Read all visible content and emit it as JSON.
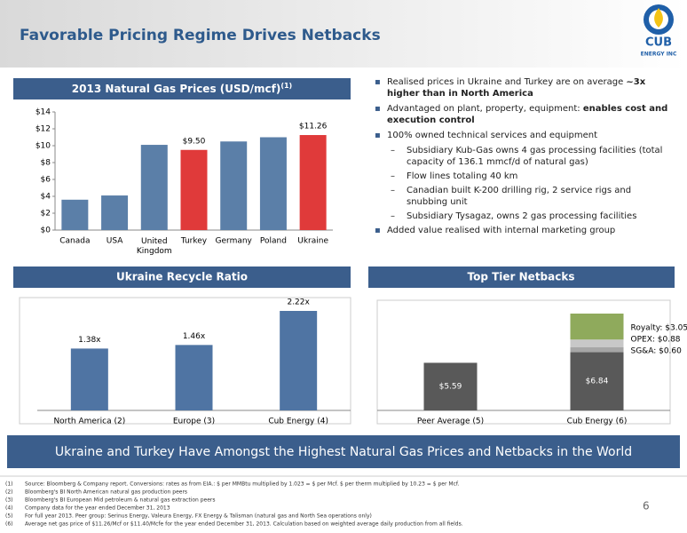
{
  "header": {
    "title": "Favorable Pricing Regime Drives Netbacks"
  },
  "logo": {
    "name": "CUB",
    "tagline": "ENERGY INC"
  },
  "chart_data": [
    {
      "type": "bar",
      "title": "2013 Natural Gas Prices (USD/mcf)",
      "title_note": "(1)",
      "categories": [
        "Canada",
        "USA",
        "United Kingdom",
        "Turkey",
        "Germany",
        "Poland",
        "Ukraine"
      ],
      "values": [
        3.6,
        4.1,
        10.1,
        9.5,
        10.5,
        11.0,
        11.26
      ],
      "value_labels": [
        null,
        null,
        null,
        "$9.50",
        null,
        null,
        "$11.26"
      ],
      "colors": [
        "#5b7fa8",
        "#5b7fa8",
        "#5b7fa8",
        "#e03a3a",
        "#5b7fa8",
        "#5b7fa8",
        "#e03a3a"
      ],
      "ylim": [
        0,
        14
      ],
      "yticks": [
        {
          "value": 0,
          "label": "$0"
        },
        {
          "value": 2,
          "label": "$2"
        },
        {
          "value": 4,
          "label": "$4"
        },
        {
          "value": 6,
          "label": "$6"
        },
        {
          "value": 8,
          "label": "$8"
        },
        {
          "value": 10,
          "label": "$10"
        },
        {
          "value": 12,
          "label": "$12"
        },
        {
          "value": 14,
          "label": "$14"
        }
      ]
    },
    {
      "type": "bar",
      "title": "Ukraine Recycle Ratio",
      "categories": [
        "North America (2)",
        "Europe (3)",
        "Cub Energy (4)"
      ],
      "values": [
        1.38,
        1.46,
        2.22
      ],
      "value_labels": [
        "1.38x",
        "1.46x",
        "2.22x"
      ],
      "color": "#4f74a3"
    },
    {
      "type": "stacked_bar",
      "title": "Top Tier Netbacks",
      "categories": [
        "Peer Average (5)",
        "Cub Energy (6)"
      ],
      "series": [
        {
          "color": "#595959",
          "values": [
            5.59,
            6.84
          ],
          "value_labels": [
            "$5.59",
            "$6.84"
          ]
        },
        {
          "name": "SG&A",
          "color": "#a6a6a6",
          "values": [
            null,
            0.6
          ],
          "value_labels": [
            null,
            "SG&A: $0.60"
          ]
        },
        {
          "name": "OPEX",
          "color": "#c8c8c8",
          "values": [
            null,
            0.88
          ],
          "value_labels": [
            null,
            "OPEX: $0.88"
          ]
        },
        {
          "name": "Royalty",
          "color": "#8faa5c",
          "values": [
            null,
            3.05
          ],
          "value_labels": [
            null,
            "Royalty: $3.05"
          ]
        }
      ]
    }
  ],
  "bullets": [
    {
      "text": "Realised prices in Ukraine and Turkey are on average ",
      "bold": "~3x higher than in North America"
    },
    {
      "text": "Advantaged on plant, property, equipment: ",
      "bold": "enables cost and execution control"
    },
    {
      "text": "100% owned technical services and equipment",
      "sub": [
        "Subsidiary Kub-Gas owns 4 gas processing facilities (total capacity of 136.1 mmcf/d of natural gas)",
        "Flow lines totaling 40 km",
        "Canadian built K-200 drilling rig, 2 service rigs and snubbing unit",
        "Subsidiary Tysagaz, owns 2 gas processing facilities"
      ]
    },
    {
      "text": "Added value realised with internal marketing group"
    }
  ],
  "banner": "Ukraine and Turkey Have Amongst the Highest Natural Gas Prices and Netbacks in the World",
  "page_number": "6",
  "footnotes": [
    {
      "ref": "(1)",
      "text": "Source: Bloomberg & Company report. Conversions: rates as from EIA.: $ per MMBtu multiplied by 1.023 = $ per Mcf. $ per therm multiplied by 10.23 = $ per Mcf."
    },
    {
      "ref": "(2)",
      "text": "Bloomberg's BI North American natural gas production peers"
    },
    {
      "ref": "(3)",
      "text": "Bloomberg's BI European Mid petroleum & natural gas extraction peers"
    },
    {
      "ref": "(4)",
      "text": "Company data for the year ended December 31, 2013"
    },
    {
      "ref": "(5)",
      "text": "For full year 2013. Peer group: Serinus Energy, Valeura Energy, FX Energy & Talisman (natural gas and North Sea operations only)"
    },
    {
      "ref": "(6)",
      "text": "Average net gas price of $11.26/Mcf or $11.40/Mcfe for the year ended December 31, 2013. Calculation based on weighted average daily production from all fields."
    }
  ]
}
